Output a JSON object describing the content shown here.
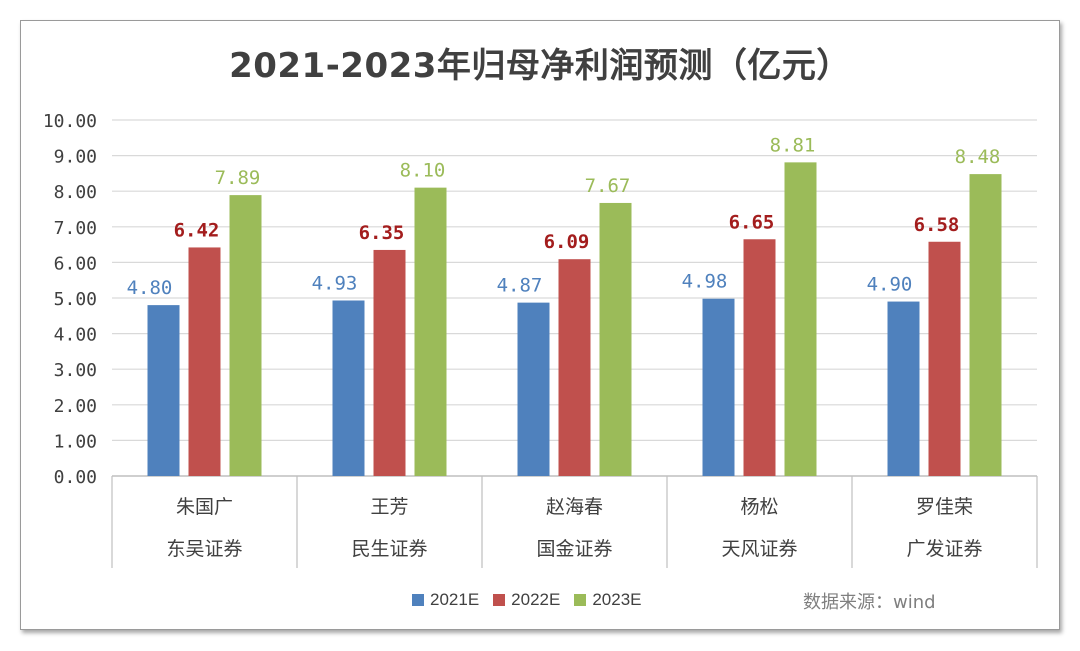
{
  "chart_data": {
    "type": "bar",
    "title": "2021-2023年归母净利润预测（亿元）",
    "categories": [
      {
        "analyst": "朱国广",
        "firm": "东吴证券"
      },
      {
        "analyst": "王芳",
        "firm": "民生证券"
      },
      {
        "analyst": "赵海春",
        "firm": "国金证券"
      },
      {
        "analyst": "杨松",
        "firm": "天风证券"
      },
      {
        "analyst": "罗佳荣",
        "firm": "广发证券"
      }
    ],
    "series": [
      {
        "name": "2021E",
        "color": "#4f81bd",
        "label_color": "#4f81bd",
        "values": [
          4.8,
          4.93,
          4.87,
          4.98,
          4.9
        ],
        "labels": [
          "4.80",
          "4.93",
          "4.87",
          "4.98",
          "4.90"
        ]
      },
      {
        "name": "2022E",
        "color": "#c0504d",
        "label_color": "#a31d1d",
        "values": [
          6.42,
          6.35,
          6.09,
          6.65,
          6.58
        ],
        "labels": [
          "6.42",
          "6.35",
          "6.09",
          "6.65",
          "6.58"
        ]
      },
      {
        "name": "2023E",
        "color": "#9bbb59",
        "label_color": "#9bbb59",
        "values": [
          7.89,
          8.1,
          7.67,
          8.81,
          8.48
        ],
        "labels": [
          "7.89",
          "8.10",
          "7.67",
          "8.81",
          "8.48"
        ]
      }
    ],
    "ylim": [
      0,
      10
    ],
    "yticks": [
      "0.00",
      "1.00",
      "2.00",
      "3.00",
      "4.00",
      "5.00",
      "6.00",
      "7.00",
      "8.00",
      "9.00",
      "10.00"
    ],
    "grid": true,
    "legend_position": "bottom"
  },
  "source_note": "数据来源：wind"
}
